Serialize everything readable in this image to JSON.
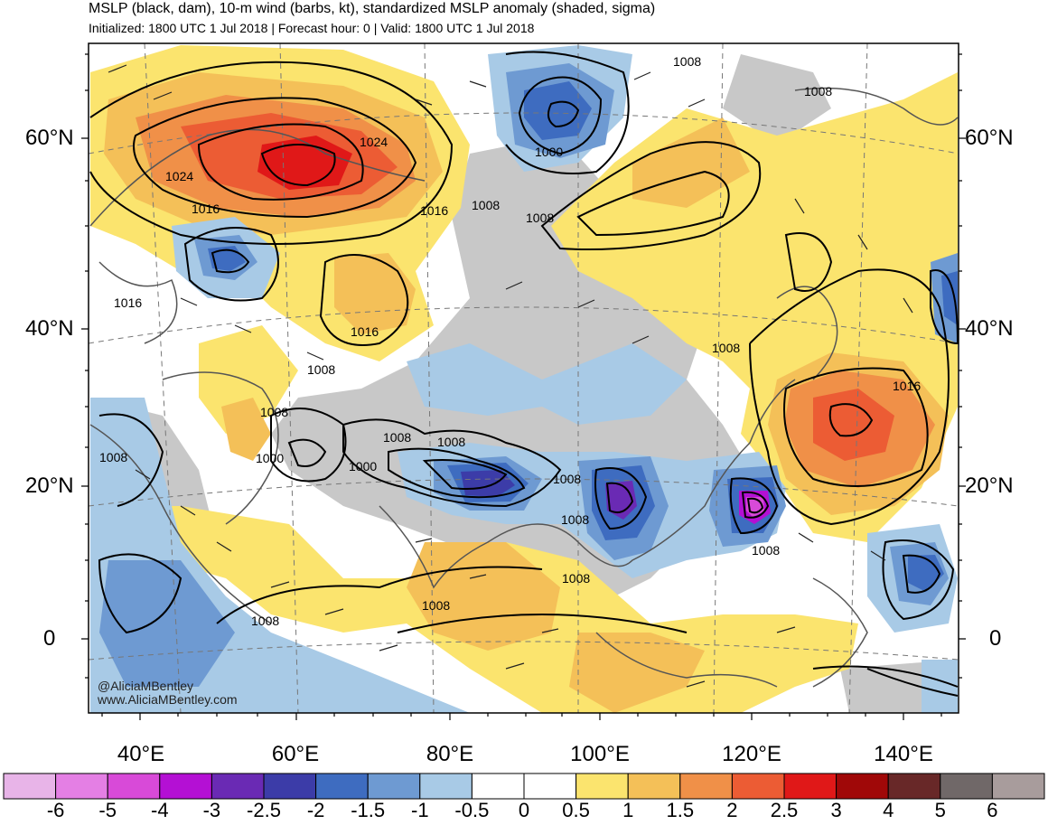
{
  "header": {
    "title": "MSLP (black, dam), 10-m wind (barbs, kt), standardized MSLP anomaly (shaded, sigma)",
    "subtitle": "Initialized: 1800 UTC 1 Jul 2018 | Forecast hour: 0 | Valid: 1800 UTC 1 Jul 2018"
  },
  "axes": {
    "lat_left": [
      "60°N",
      "40°N",
      "20°N",
      "0"
    ],
    "lat_right": [
      "60°N",
      "40°N",
      "20°N",
      "0"
    ],
    "lon": [
      "40°E",
      "60°E",
      "80°E",
      "100°E",
      "120°E",
      "140°E"
    ]
  },
  "colorbar": {
    "labels": [
      "-6",
      "-5",
      "-4",
      "-3",
      "-2.5",
      "-2",
      "-1.5",
      "-1",
      "-0.5",
      "0",
      "0.5",
      "1",
      "1.5",
      "2",
      "2.5",
      "3",
      "4",
      "5",
      "6"
    ],
    "colors": [
      "#e8b4e8",
      "#e47fe4",
      "#d84ad8",
      "#b410d4",
      "#6a2ab4",
      "#3c3ca8",
      "#3e6cc0",
      "#6e9ad2",
      "#a8cae6",
      "#ffffff",
      "#ffffff",
      "#fbe46e",
      "#f4c058",
      "#f09048",
      "#ec5c34",
      "#e01818",
      "#a00808",
      "#682828",
      "#706868",
      "#a89c9c"
    ]
  },
  "contour_labels": [
    "1024",
    "1024",
    "1016",
    "1016",
    "1016",
    "1016",
    "1008",
    "1008",
    "1000",
    "1008",
    "1008",
    "1008",
    "1008",
    "1008",
    "1016",
    "1008",
    "1008",
    "1000",
    "1000",
    "1008",
    "1008",
    "1008",
    "1008",
    "1008",
    "1008",
    "1008",
    "1008",
    "1008"
  ],
  "credit": {
    "line1": "@AliciaMBentley",
    "line2": "www.AliciaMBentley.com"
  },
  "colors": {
    "land_gray": "#c8c8c8",
    "frame": "#000000",
    "contour": "#000000"
  }
}
